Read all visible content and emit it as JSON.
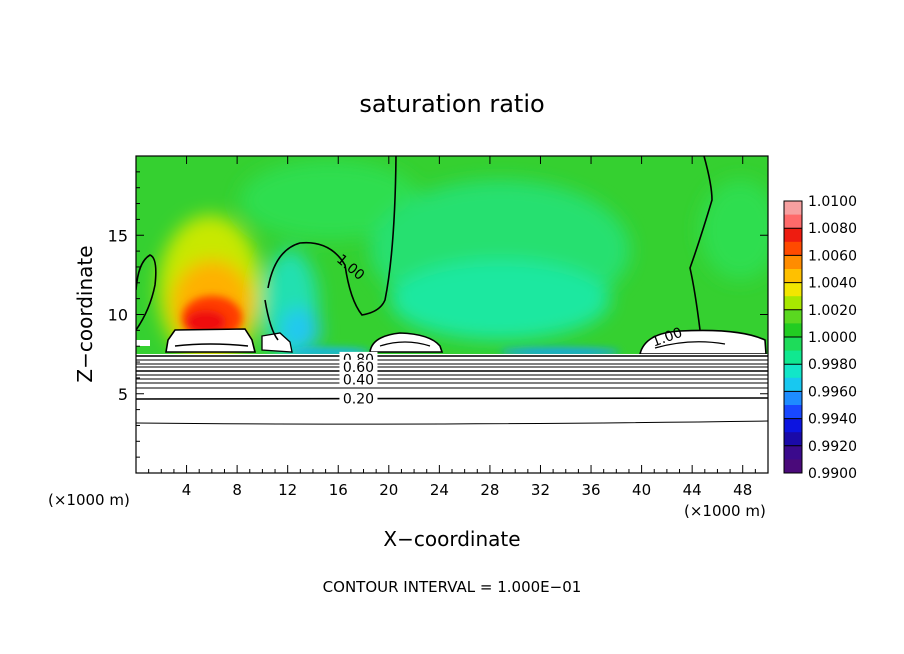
{
  "chart_data": {
    "type": "heatmap",
    "title": "saturation ratio",
    "xlabel": "X−coordinate",
    "ylabel": "Z−coordinate",
    "x_unit_left": "(×1000 m)",
    "x_unit_right": "(×1000 m)",
    "xlim": [
      0,
      50
    ],
    "ylim": [
      0,
      20
    ],
    "x_ticks": [
      4,
      8,
      12,
      16,
      20,
      24,
      28,
      32,
      36,
      40,
      44,
      48
    ],
    "y_ticks": [
      5,
      10,
      15
    ],
    "footer": "CONTOUR INTERVAL = 1.000E−01",
    "colorbar": {
      "min": 0.99,
      "max": 1.01,
      "labels": [
        "1.0100",
        "1.0080",
        "1.0060",
        "1.0040",
        "1.0020",
        "1.0000",
        "0.9980",
        "0.9960",
        "0.9940",
        "0.9920",
        "0.9900"
      ],
      "colors": [
        "#f7a0a0",
        "#ff6a6a",
        "#ee1c10",
        "#ff4a00",
        "#ff8c00",
        "#ffc000",
        "#f2e600",
        "#a8e800",
        "#5ad820",
        "#22cc22",
        "#1edc5a",
        "#10e890",
        "#12e6c8",
        "#18c8f0",
        "#1e8cff",
        "#1848ff",
        "#0c14e0",
        "#1a0aa8",
        "#3a0a8c",
        "#4a0a7a"
      ]
    },
    "contour_labels": [
      {
        "text": "1.00",
        "x": 17.0,
        "z": 13.0
      },
      {
        "text": "1.00",
        "x": 42.0,
        "z": 8.6
      },
      {
        "text": "0.80",
        "x": 17.6,
        "z": 7.2
      },
      {
        "text": "0.60",
        "x": 17.6,
        "z": 6.7
      },
      {
        "text": "0.40",
        "x": 17.6,
        "z": 5.9
      },
      {
        "text": "0.20",
        "x": 17.6,
        "z": 4.7
      }
    ]
  }
}
